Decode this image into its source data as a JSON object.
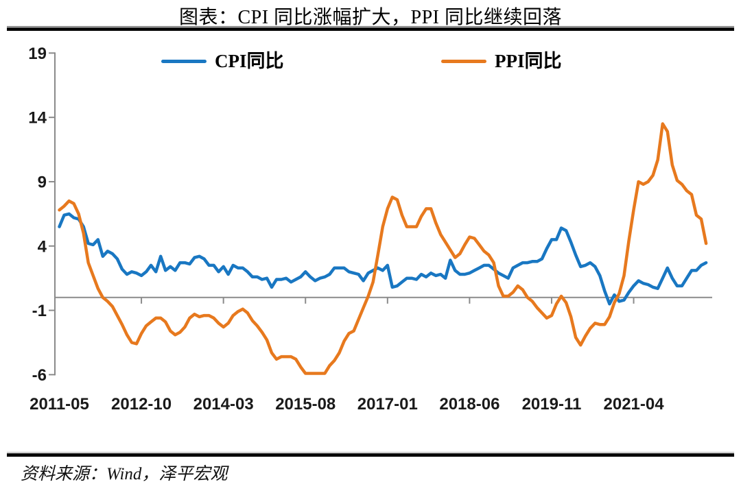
{
  "header": {
    "title": "图表：CPI 同比涨幅扩大，PPI 同比继续回落"
  },
  "legend": [
    {
      "label": "CPI同比",
      "color": "#1977C2"
    },
    {
      "label": "PPI同比",
      "color": "#E7791E"
    }
  ],
  "footer": {
    "source_note": "资料来源：Wind，泽平宏观"
  },
  "chart_data": {
    "type": "line",
    "title": "图表：CPI 同比涨幅扩大，PPI 同比继续回落",
    "xlabel": "",
    "ylabel": "",
    "x_range": {
      "start": "2011-05",
      "end": "2022-07",
      "frequency": "monthly"
    },
    "x_tick_labels": [
      "2011-05",
      "2012-10",
      "2014-03",
      "2015-08",
      "2017-01",
      "2018-06",
      "2019-11",
      "2021-04"
    ],
    "x_tick_indices": [
      0,
      17,
      34,
      51,
      68,
      85,
      102,
      119
    ],
    "y_ticks": [
      19,
      14,
      9,
      4,
      -1,
      -6
    ],
    "ylim": [
      -6,
      19
    ],
    "grid": false,
    "zero_line": true,
    "legend_position": "top",
    "axis_color": "#8a8a8a",
    "series": [
      {
        "name": "CPI同比",
        "color": "#1977C2",
        "values": [
          5.5,
          6.4,
          6.5,
          6.2,
          6.1,
          5.5,
          4.2,
          4.1,
          4.5,
          3.2,
          3.6,
          3.4,
          3.0,
          2.2,
          1.8,
          2.0,
          1.9,
          1.7,
          2.0,
          2.5,
          2.0,
          3.2,
          2.1,
          2.4,
          2.1,
          2.7,
          2.7,
          2.6,
          3.1,
          3.2,
          3.0,
          2.5,
          2.5,
          2.0,
          2.4,
          1.8,
          2.5,
          2.3,
          2.3,
          2.0,
          1.6,
          1.6,
          1.4,
          1.5,
          0.8,
          1.4,
          1.4,
          1.5,
          1.2,
          1.4,
          1.6,
          2.0,
          1.6,
          1.3,
          1.5,
          1.6,
          1.8,
          2.3,
          2.3,
          2.3,
          2.0,
          1.9,
          1.8,
          1.3,
          1.9,
          2.1,
          2.3,
          2.1,
          2.5,
          0.8,
          0.9,
          1.2,
          1.5,
          1.5,
          1.4,
          1.8,
          1.6,
          1.9,
          1.7,
          1.8,
          1.5,
          2.9,
          2.1,
          1.8,
          1.8,
          1.9,
          2.1,
          2.3,
          2.5,
          2.5,
          2.2,
          1.9,
          1.7,
          1.5,
          2.3,
          2.5,
          2.7,
          2.7,
          2.8,
          2.8,
          3.0,
          3.8,
          4.5,
          4.5,
          5.4,
          5.2,
          4.3,
          3.3,
          2.4,
          2.5,
          2.7,
          2.4,
          1.7,
          0.5,
          -0.5,
          0.2,
          -0.3,
          -0.2,
          0.4,
          0.9,
          1.3,
          1.1,
          1.0,
          0.8,
          0.7,
          1.5,
          2.3,
          1.5,
          0.9,
          0.9,
          1.5,
          2.1,
          2.1,
          2.5,
          2.7
        ]
      },
      {
        "name": "PPI同比",
        "color": "#E7791E",
        "values": [
          6.8,
          7.1,
          7.5,
          7.3,
          6.5,
          5.0,
          2.7,
          1.7,
          0.7,
          0.0,
          -0.3,
          -0.7,
          -1.4,
          -2.1,
          -2.9,
          -3.5,
          -3.6,
          -2.8,
          -2.2,
          -1.9,
          -1.6,
          -1.6,
          -1.9,
          -2.6,
          -2.9,
          -2.7,
          -2.3,
          -1.6,
          -1.3,
          -1.5,
          -1.4,
          -1.4,
          -1.6,
          -2.0,
          -2.3,
          -2.0,
          -1.4,
          -1.1,
          -0.9,
          -1.2,
          -1.8,
          -2.2,
          -2.7,
          -3.3,
          -4.3,
          -4.8,
          -4.6,
          -4.6,
          -4.6,
          -4.8,
          -5.4,
          -5.9,
          -5.9,
          -5.9,
          -5.9,
          -5.9,
          -5.3,
          -4.9,
          -4.3,
          -3.4,
          -2.8,
          -2.6,
          -1.7,
          -0.8,
          0.1,
          1.2,
          3.3,
          5.5,
          6.9,
          7.8,
          7.6,
          6.4,
          5.5,
          5.5,
          5.5,
          6.3,
          6.9,
          6.9,
          5.8,
          4.9,
          4.3,
          3.7,
          3.1,
          3.4,
          4.1,
          4.7,
          4.6,
          4.1,
          3.6,
          3.3,
          2.7,
          0.9,
          0.1,
          0.1,
          0.4,
          0.9,
          0.6,
          0.0,
          -0.3,
          -0.8,
          -1.2,
          -1.6,
          -1.4,
          -0.5,
          0.1,
          -0.4,
          -1.5,
          -3.1,
          -3.7,
          -3.0,
          -2.4,
          -2.0,
          -2.1,
          -2.1,
          -1.5,
          -0.4,
          0.3,
          1.7,
          4.4,
          6.8,
          9.0,
          8.8,
          9.0,
          9.5,
          10.7,
          13.5,
          12.9,
          10.3,
          9.1,
          8.8,
          8.3,
          8.0,
          6.4,
          6.1,
          4.2
        ]
      }
    ]
  }
}
